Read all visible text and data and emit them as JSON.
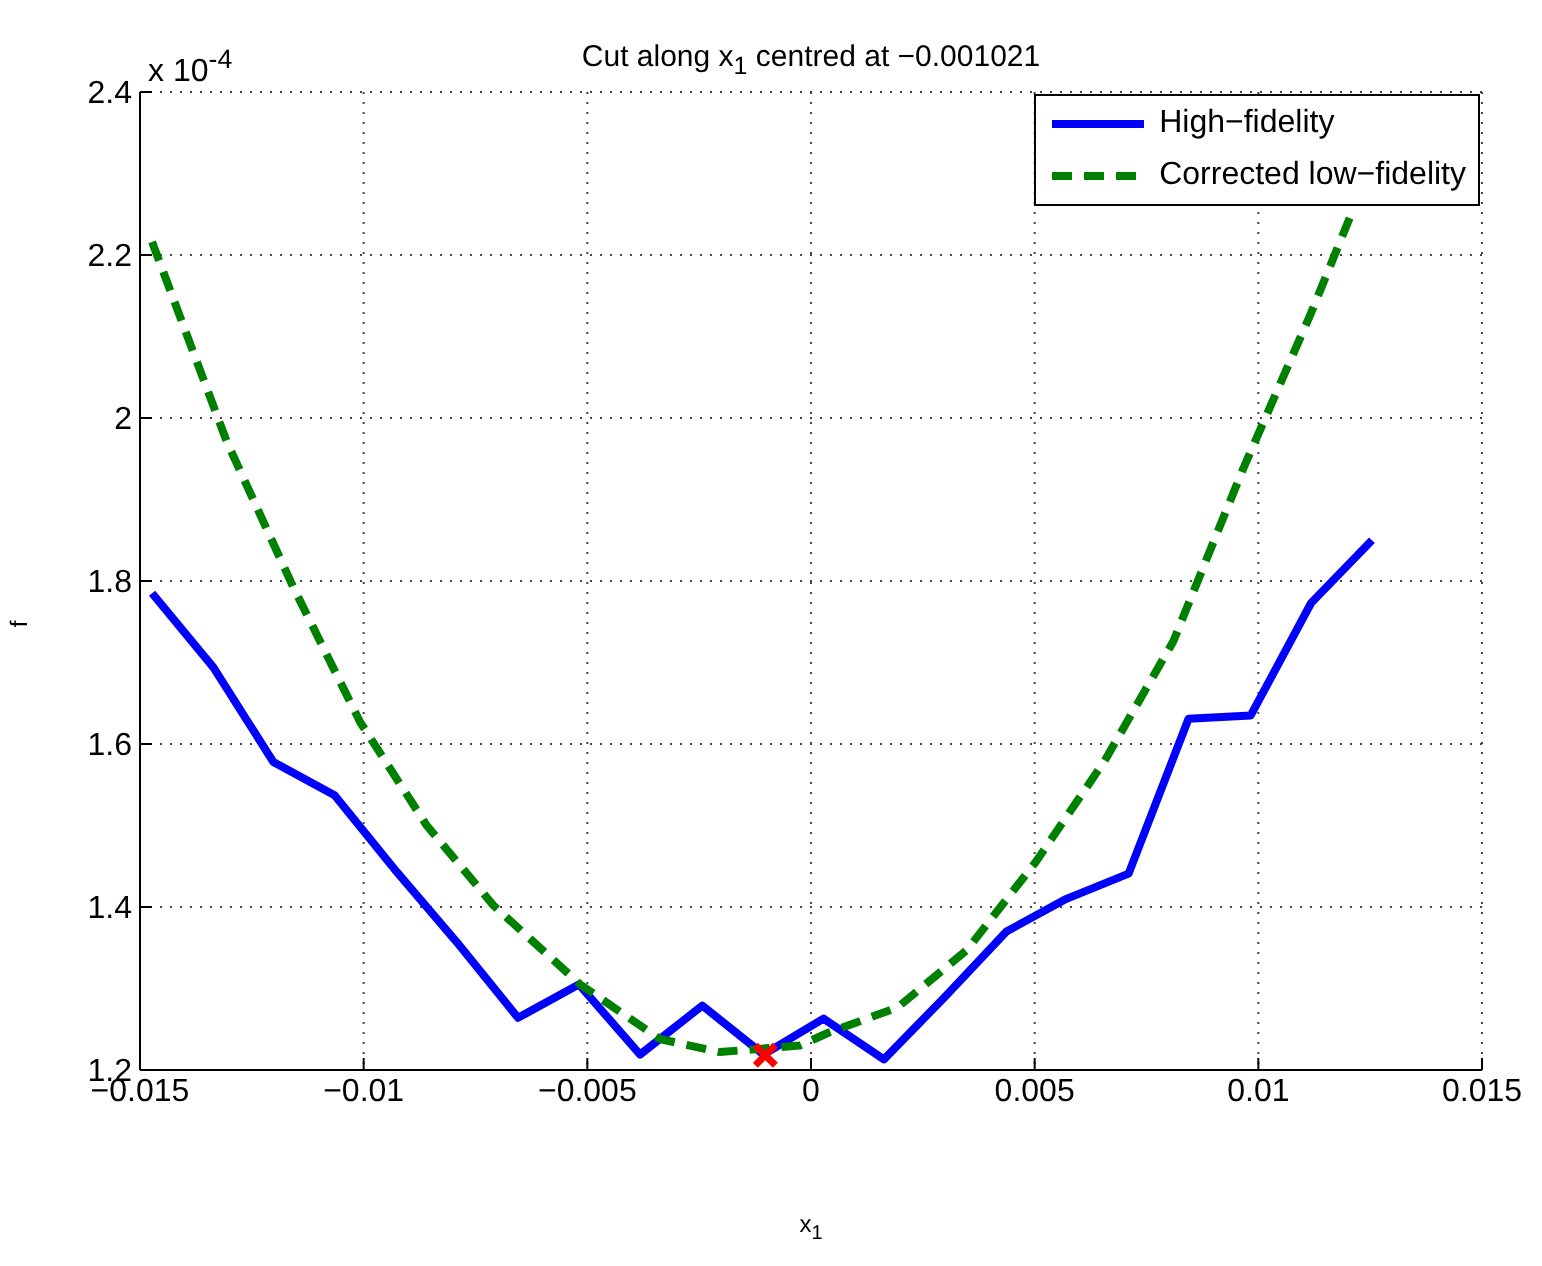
{
  "chart_data": {
    "type": "line",
    "title": "Cut along x$_{1}$ centred at −0.001021",
    "xlabel": "x$_{1}$",
    "ylabel": "f",
    "annotations": [
      "x 10$^{-4}$"
    ],
    "xlim": [
      -0.015,
      0.015
    ],
    "xticks": [
      {
        "value": -0.015,
        "label": "−0.015"
      },
      {
        "value": -0.01,
        "label": "−0.01"
      },
      {
        "value": -0.005,
        "label": "−0.005"
      },
      0,
      0.005,
      0.01,
      0.015
    ],
    "ylim": [
      1.2,
      2.4
    ],
    "yticks": [
      1.2,
      1.4,
      1.6,
      1.8,
      2,
      2.2,
      2.4
    ],
    "grid": true,
    "legend": "top right",
    "series": [
      {
        "name": "High−fidelity",
        "color": "#0000ff",
        "line_style": "solid",
        "marker": "none",
        "x": [
          -0.01473,
          -0.01336,
          -0.01202,
          -0.01065,
          -0.00926,
          -0.00792,
          -0.00655,
          -0.00519,
          -0.00382,
          -0.00243,
          -0.00106,
          0.00028,
          0.00163,
          0.00298,
          0.00437,
          0.00571,
          0.0071,
          0.00844,
          0.00983,
          0.01118,
          0.01254
        ],
        "values": [
          1.785,
          1.694,
          1.578,
          1.537,
          1.443,
          1.357,
          1.264,
          1.305,
          1.219,
          1.279,
          1.219,
          1.263,
          1.213,
          1.289,
          1.37,
          1.41,
          1.441,
          1.631,
          1.635,
          1.773,
          1.85
        ]
      },
      {
        "name": "Corrected low−fidelity",
        "color": "#008000",
        "line_style": "dashed",
        "marker": "none",
        "x": [
          -0.01473,
          -0.01306,
          -0.01157,
          -0.01008,
          -0.00859,
          -0.0071,
          -0.00516,
          -0.00338,
          -0.00204,
          -0.00025,
          0.0004,
          0.00194,
          0.00348,
          0.00502,
          0.00656,
          0.0081,
          0.00964,
          0.01118,
          0.01209
        ],
        "values": [
          2.216,
          1.971,
          1.792,
          1.627,
          1.5,
          1.402,
          1.305,
          1.238,
          1.222,
          1.23,
          1.246,
          1.277,
          1.347,
          1.455,
          1.579,
          1.726,
          1.935,
          2.129,
          2.252
        ]
      },
      {
        "type": "scatter",
        "color": "#ff0000",
        "marker": "cross",
        "x": [
          -0.001021
        ],
        "values": [
          1.218
        ]
      }
    ]
  }
}
